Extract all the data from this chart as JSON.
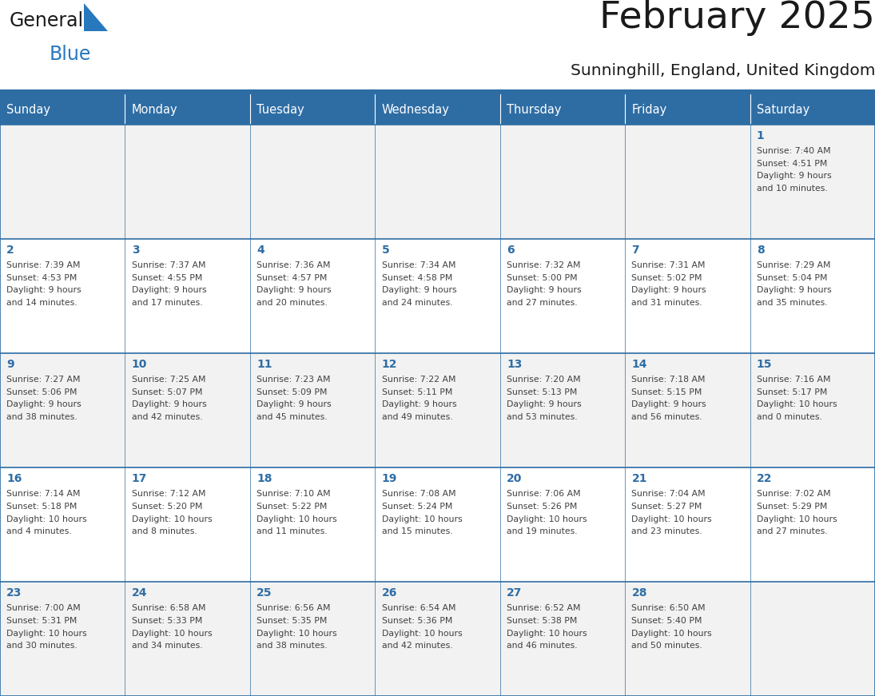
{
  "title": "February 2025",
  "subtitle": "Sunninghill, England, United Kingdom",
  "header_bg_color": "#2E6DA4",
  "header_text_color": "#FFFFFF",
  "cell_bg_odd": "#F2F2F2",
  "cell_bg_even": "#FFFFFF",
  "grid_line_color": "#2E6DA4",
  "day_number_color": "#2E6DA4",
  "text_color": "#404040",
  "days_of_week": [
    "Sunday",
    "Monday",
    "Tuesday",
    "Wednesday",
    "Thursday",
    "Friday",
    "Saturday"
  ],
  "weeks": [
    [
      {
        "day": null,
        "sunrise": null,
        "sunset": null,
        "daylight": null
      },
      {
        "day": null,
        "sunrise": null,
        "sunset": null,
        "daylight": null
      },
      {
        "day": null,
        "sunrise": null,
        "sunset": null,
        "daylight": null
      },
      {
        "day": null,
        "sunrise": null,
        "sunset": null,
        "daylight": null
      },
      {
        "day": null,
        "sunrise": null,
        "sunset": null,
        "daylight": null
      },
      {
        "day": null,
        "sunrise": null,
        "sunset": null,
        "daylight": null
      },
      {
        "day": 1,
        "sunrise": "7:40 AM",
        "sunset": "4:51 PM",
        "daylight": "9 hours\nand 10 minutes."
      }
    ],
    [
      {
        "day": 2,
        "sunrise": "7:39 AM",
        "sunset": "4:53 PM",
        "daylight": "9 hours\nand 14 minutes."
      },
      {
        "day": 3,
        "sunrise": "7:37 AM",
        "sunset": "4:55 PM",
        "daylight": "9 hours\nand 17 minutes."
      },
      {
        "day": 4,
        "sunrise": "7:36 AM",
        "sunset": "4:57 PM",
        "daylight": "9 hours\nand 20 minutes."
      },
      {
        "day": 5,
        "sunrise": "7:34 AM",
        "sunset": "4:58 PM",
        "daylight": "9 hours\nand 24 minutes."
      },
      {
        "day": 6,
        "sunrise": "7:32 AM",
        "sunset": "5:00 PM",
        "daylight": "9 hours\nand 27 minutes."
      },
      {
        "day": 7,
        "sunrise": "7:31 AM",
        "sunset": "5:02 PM",
        "daylight": "9 hours\nand 31 minutes."
      },
      {
        "day": 8,
        "sunrise": "7:29 AM",
        "sunset": "5:04 PM",
        "daylight": "9 hours\nand 35 minutes."
      }
    ],
    [
      {
        "day": 9,
        "sunrise": "7:27 AM",
        "sunset": "5:06 PM",
        "daylight": "9 hours\nand 38 minutes."
      },
      {
        "day": 10,
        "sunrise": "7:25 AM",
        "sunset": "5:07 PM",
        "daylight": "9 hours\nand 42 minutes."
      },
      {
        "day": 11,
        "sunrise": "7:23 AM",
        "sunset": "5:09 PM",
        "daylight": "9 hours\nand 45 minutes."
      },
      {
        "day": 12,
        "sunrise": "7:22 AM",
        "sunset": "5:11 PM",
        "daylight": "9 hours\nand 49 minutes."
      },
      {
        "day": 13,
        "sunrise": "7:20 AM",
        "sunset": "5:13 PM",
        "daylight": "9 hours\nand 53 minutes."
      },
      {
        "day": 14,
        "sunrise": "7:18 AM",
        "sunset": "5:15 PM",
        "daylight": "9 hours\nand 56 minutes."
      },
      {
        "day": 15,
        "sunrise": "7:16 AM",
        "sunset": "5:17 PM",
        "daylight": "10 hours\nand 0 minutes."
      }
    ],
    [
      {
        "day": 16,
        "sunrise": "7:14 AM",
        "sunset": "5:18 PM",
        "daylight": "10 hours\nand 4 minutes."
      },
      {
        "day": 17,
        "sunrise": "7:12 AM",
        "sunset": "5:20 PM",
        "daylight": "10 hours\nand 8 minutes."
      },
      {
        "day": 18,
        "sunrise": "7:10 AM",
        "sunset": "5:22 PM",
        "daylight": "10 hours\nand 11 minutes."
      },
      {
        "day": 19,
        "sunrise": "7:08 AM",
        "sunset": "5:24 PM",
        "daylight": "10 hours\nand 15 minutes."
      },
      {
        "day": 20,
        "sunrise": "7:06 AM",
        "sunset": "5:26 PM",
        "daylight": "10 hours\nand 19 minutes."
      },
      {
        "day": 21,
        "sunrise": "7:04 AM",
        "sunset": "5:27 PM",
        "daylight": "10 hours\nand 23 minutes."
      },
      {
        "day": 22,
        "sunrise": "7:02 AM",
        "sunset": "5:29 PM",
        "daylight": "10 hours\nand 27 minutes."
      }
    ],
    [
      {
        "day": 23,
        "sunrise": "7:00 AM",
        "sunset": "5:31 PM",
        "daylight": "10 hours\nand 30 minutes."
      },
      {
        "day": 24,
        "sunrise": "6:58 AM",
        "sunset": "5:33 PM",
        "daylight": "10 hours\nand 34 minutes."
      },
      {
        "day": 25,
        "sunrise": "6:56 AM",
        "sunset": "5:35 PM",
        "daylight": "10 hours\nand 38 minutes."
      },
      {
        "day": 26,
        "sunrise": "6:54 AM",
        "sunset": "5:36 PM",
        "daylight": "10 hours\nand 42 minutes."
      },
      {
        "day": 27,
        "sunrise": "6:52 AM",
        "sunset": "5:38 PM",
        "daylight": "10 hours\nand 46 minutes."
      },
      {
        "day": 28,
        "sunrise": "6:50 AM",
        "sunset": "5:40 PM",
        "daylight": "10 hours\nand 50 minutes."
      },
      {
        "day": null,
        "sunrise": null,
        "sunset": null,
        "daylight": null
      }
    ]
  ],
  "logo_general_color": "#1a1a1a",
  "logo_blue_color": "#2878BE",
  "logo_triangle_color": "#2878BE"
}
